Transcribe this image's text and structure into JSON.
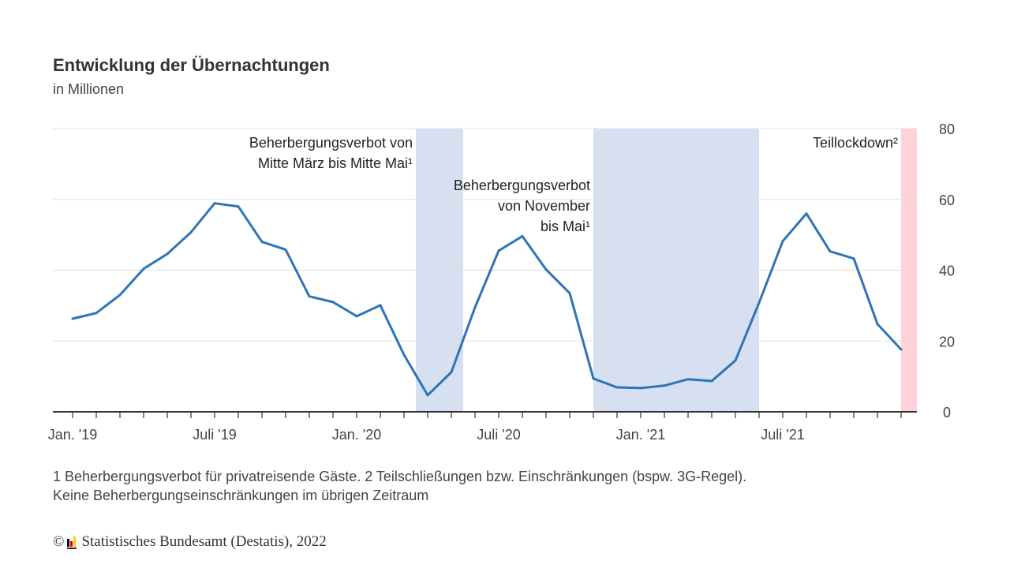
{
  "header": {
    "title": "Entwicklung der Übernachtungen",
    "subtitle": "in Millionen"
  },
  "footnote": {
    "line1": "1 Beherbergungsverbot für privatreisende Gäste. 2 Teilschließungen bzw. Einschränkungen (bspw. 3G-Regel).",
    "line2": "Keine Beherbergungseinschränkungen im übrigen Zeitraum"
  },
  "source": {
    "copyright_symbol": "©",
    "text": "Statistisches Bundesamt (Destatis), 2022",
    "logo_colors": [
      "#000000",
      "#dd0000",
      "#ffcc00"
    ]
  },
  "colors": {
    "line": "#2e75b6",
    "ban_shade": "#d6e0f0",
    "lockdown_shade": "#ffd1d9",
    "grid": "#e0e0e0",
    "axis": "#333333"
  },
  "chart_data": {
    "type": "line",
    "title": "Entwicklung der Übernachtungen",
    "subtitle": "in Millionen",
    "xlabel": "",
    "ylabel": "",
    "ylim": [
      0,
      80
    ],
    "y_ticks": [
      0,
      20,
      40,
      60,
      80
    ],
    "y_axis_side": "right",
    "grid": true,
    "x_start": "2019-01",
    "x": [
      "2019-01",
      "2019-02",
      "2019-03",
      "2019-04",
      "2019-05",
      "2019-06",
      "2019-07",
      "2019-08",
      "2019-09",
      "2019-10",
      "2019-11",
      "2019-12",
      "2020-01",
      "2020-02",
      "2020-03",
      "2020-04",
      "2020-05",
      "2020-06",
      "2020-07",
      "2020-08",
      "2020-09",
      "2020-10",
      "2020-11",
      "2020-12",
      "2021-01",
      "2021-02",
      "2021-03",
      "2021-04",
      "2021-05",
      "2021-06",
      "2021-07",
      "2021-08",
      "2021-09",
      "2021-10",
      "2021-11",
      "2021-12"
    ],
    "x_tick_labels": [
      {
        "index": 0,
        "label": "Jan. '19"
      },
      {
        "index": 6,
        "label": "Juli '19"
      },
      {
        "index": 12,
        "label": "Jan. '20"
      },
      {
        "index": 18,
        "label": "Juli '20"
      },
      {
        "index": 24,
        "label": "Jan. '21"
      },
      {
        "index": 30,
        "label": "Juli '21"
      }
    ],
    "series": [
      {
        "name": "Übernachtungen",
        "values": [
          26.3,
          27.9,
          33.0,
          40.4,
          44.6,
          50.7,
          58.9,
          58.0,
          48.0,
          45.8,
          32.6,
          31.0,
          27.0,
          30.1,
          16.1,
          4.7,
          11.2,
          29.5,
          45.5,
          49.6,
          40.2,
          33.5,
          9.4,
          6.9,
          6.7,
          7.4,
          9.2,
          8.7,
          14.5,
          30.8,
          48.2,
          56.0,
          45.3,
          43.3,
          24.8,
          17.6
        ]
      }
    ],
    "shaded_periods": [
      {
        "name": "ban-spring-2020",
        "from": 14.5,
        "to": 16.5,
        "kind": "ban",
        "label_lines": [
          "Beherbergungsverbot von",
          "Mitte März bis Mitte Mai¹"
        ],
        "label_row": 0
      },
      {
        "name": "ban-winter-2020-21",
        "from": 22,
        "to": 29,
        "kind": "ban",
        "label_lines": [
          "Beherbergungsverbot",
          "von November",
          "bis Mai¹"
        ],
        "label_row": 2
      },
      {
        "name": "partial-lockdown-2021",
        "from": 35,
        "to": 35.7,
        "kind": "lockdown",
        "label_lines": [
          "Teillockdown²"
        ],
        "label_row": 0
      }
    ]
  }
}
